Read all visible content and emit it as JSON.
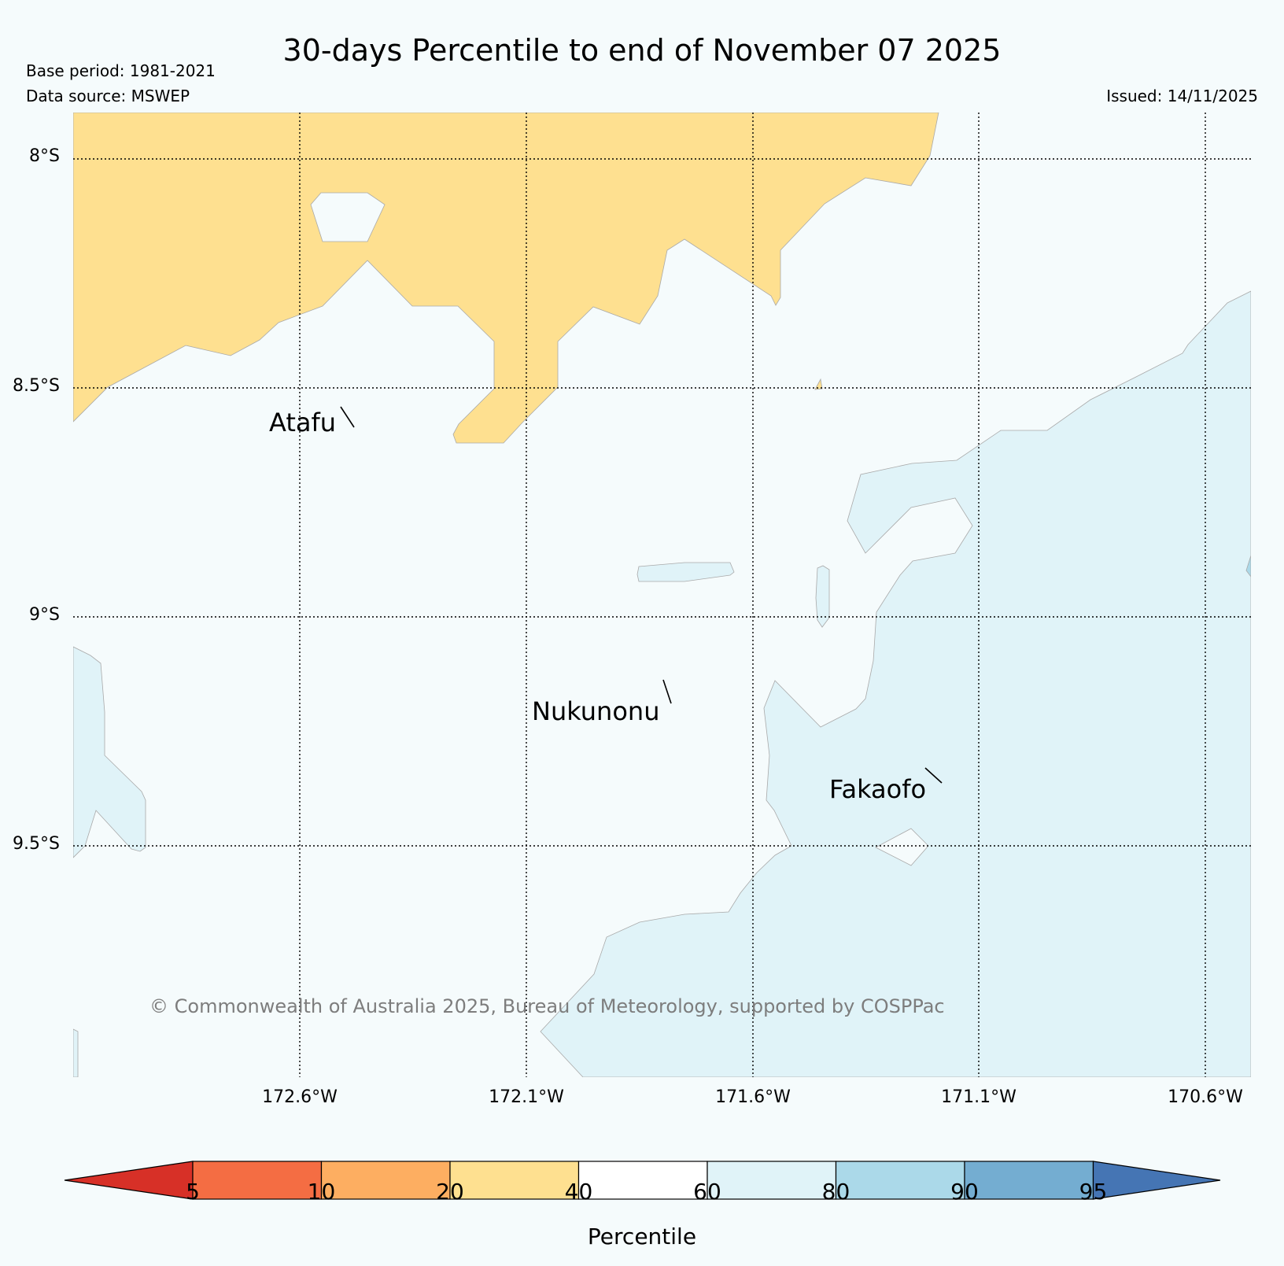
{
  "title": "30-days Percentile to end of November 07 2025",
  "meta": {
    "base_period": "Base period: 1981-2021",
    "data_source": "Data source: MSWEP",
    "issued": "Issued: 14/11/2025"
  },
  "map": {
    "lat_labels": [
      "8°S",
      "8.5°S",
      "9°S",
      "9.5°S"
    ],
    "lon_labels": [
      "172.6°W",
      "172.1°W",
      "171.6°W",
      "171.1°W",
      "170.6°W"
    ],
    "places": [
      "Atafu",
      "Nukunonu",
      "Fakaofo"
    ],
    "copyright": "© Commonwealth of Australia 2025, Bureau of Meteorology, supported by COSPPac",
    "fill_colors": {
      "ocean_40_60": "#f5fbfc",
      "band_20_40": "#fee090",
      "band_60_80": "#e0f3f8"
    }
  },
  "colorbar": {
    "label": "Percentile",
    "ticks": [
      "5",
      "10",
      "20",
      "40",
      "60",
      "80",
      "90",
      "95"
    ],
    "colors": [
      "#d73027",
      "#f46d43",
      "#fdae61",
      "#fee090",
      "#ffffff",
      "#e0f3f8",
      "#abd9e9",
      "#74add1",
      "#4575b4"
    ]
  }
}
